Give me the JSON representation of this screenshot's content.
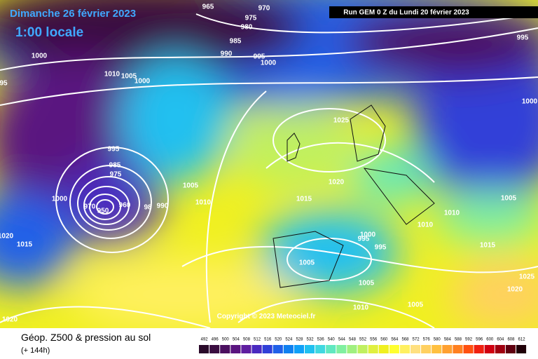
{
  "header": {
    "date": "Dimanche 26 février 2023",
    "time": "1:00 locale",
    "run": "Run GEM 0 Z du Lundi 20 février 2023"
  },
  "map": {
    "copyright": "Copyright © 2023 Meteociel.fr",
    "isobar_labels": [
      "965",
      "970",
      "975",
      "980",
      "985",
      "990",
      "995",
      "1000",
      "995",
      "1000",
      "1010",
      "1005",
      "1000",
      "95",
      "1000",
      "995",
      "985",
      "975",
      "1000",
      "1005",
      "1010",
      "970",
      "950",
      "960",
      "98",
      "990",
      "1020",
      "1015",
      "1025",
      "1020",
      "1015",
      "1010",
      "1005",
      "1010",
      "1000",
      "995",
      "995",
      "1015",
      "1005",
      "1005",
      "1010",
      "1005",
      "1025",
      "1020",
      "1020"
    ]
  },
  "legend": {
    "title": "Géop. Z500 & pression au sol",
    "lead": "(+ 144h)",
    "labels": [
      "492",
      "496",
      "500",
      "504",
      "508",
      "512",
      "516",
      "520",
      "524",
      "528",
      "532",
      "536",
      "540",
      "544",
      "548",
      "552",
      "556",
      "560",
      "564",
      "568",
      "572",
      "576",
      "580",
      "584",
      "588",
      "592",
      "596",
      "600",
      "604",
      "608",
      "612"
    ],
    "colors": [
      "#2a0a2a",
      "#3a0d40",
      "#4b1060",
      "#5a1580",
      "#5f1ea0",
      "#4a2ac0",
      "#3040d8",
      "#2060e8",
      "#1080f0",
      "#10a0f8",
      "#20c0f0",
      "#40d8e0",
      "#60e8c0",
      "#80f0a0",
      "#a0f080",
      "#c0f060",
      "#e0f040",
      "#f0f020",
      "#ffff30",
      "#fff060",
      "#ffe080",
      "#ffd060",
      "#ffc040",
      "#ffa030",
      "#ff8020",
      "#ff5010",
      "#f02010",
      "#d00010",
      "#a00010",
      "#600010",
      "#200008"
    ]
  }
}
